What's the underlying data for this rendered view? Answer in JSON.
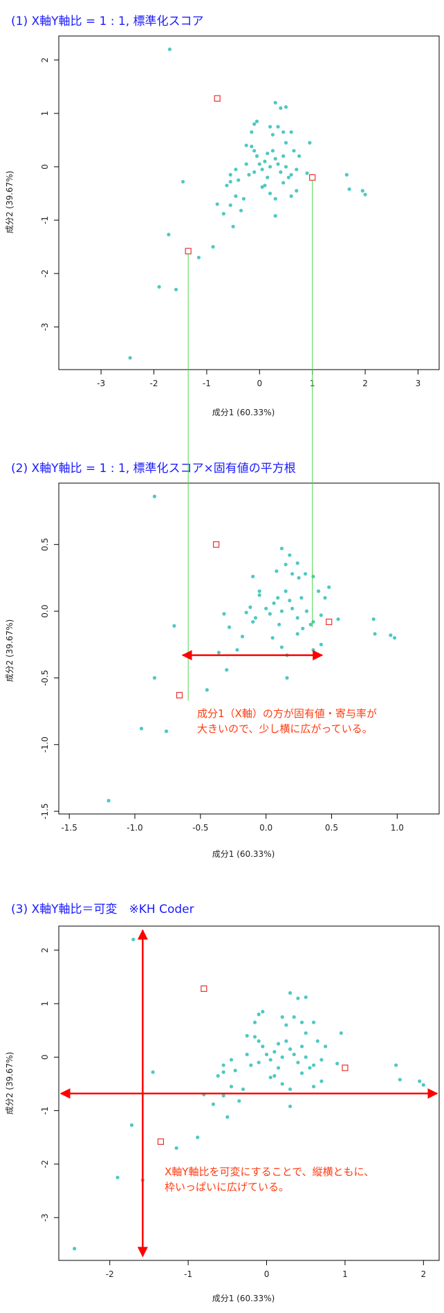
{
  "colors": {
    "point": "#4ec9c2",
    "highlight": "#e8302f",
    "guide": "#4cd24c",
    "arrow": "#ff0000",
    "heading": "#1a1aff",
    "note": "#ff3b10"
  },
  "chart_data": [
    {
      "type": "scatter",
      "heading": "(1) X軸Y軸比 = 1 : 1, 標準化スコア",
      "xlabel": "成分1 (60.33%)",
      "ylabel": "成分2 (39.67%)",
      "xlim": [
        -3.8,
        3.4
      ],
      "ylim": [
        -3.8,
        2.45
      ],
      "xticks": [
        -3,
        -2,
        -1,
        0,
        1,
        2,
        3
      ],
      "yticks": [
        -3,
        -2,
        -1,
        0,
        1,
        2
      ],
      "points": [
        [
          -1.7,
          2.2
        ],
        [
          -2.45,
          -3.58
        ],
        [
          -1.9,
          -2.25
        ],
        [
          -1.58,
          -2.3
        ],
        [
          -1.72,
          -1.27
        ],
        [
          -1.15,
          -1.7
        ],
        [
          -0.88,
          -1.5
        ],
        [
          -1.45,
          -0.28
        ],
        [
          -0.8,
          -0.7
        ],
        [
          -0.68,
          -0.88
        ],
        [
          -0.55,
          -0.72
        ],
        [
          -0.45,
          -0.55
        ],
        [
          -0.5,
          -1.12
        ],
        [
          -0.35,
          -0.82
        ],
        [
          -0.3,
          -0.6
        ],
        [
          -0.62,
          -0.35
        ],
        [
          -0.55,
          -0.15
        ],
        [
          -0.55,
          -0.28
        ],
        [
          -0.45,
          -0.05
        ],
        [
          -0.4,
          -0.25
        ],
        [
          -0.25,
          0.05
        ],
        [
          -0.2,
          -0.15
        ],
        [
          -0.15,
          0.38
        ],
        [
          -0.1,
          0.3
        ],
        [
          -0.05,
          0.2
        ],
        [
          -0.25,
          0.4
        ],
        [
          -0.15,
          0.65
        ],
        [
          -0.1,
          0.8
        ],
        [
          -0.05,
          0.85
        ],
        [
          0.0,
          0.05
        ],
        [
          0.05,
          -0.05
        ],
        [
          0.1,
          0.1
        ],
        [
          0.15,
          0.25
        ],
        [
          0.2,
          0.0
        ],
        [
          0.15,
          -0.2
        ],
        [
          0.25,
          0.3
        ],
        [
          0.3,
          0.15
        ],
        [
          0.35,
          0.05
        ],
        [
          0.4,
          -0.1
        ],
        [
          0.45,
          0.2
        ],
        [
          0.5,
          0.0
        ],
        [
          0.55,
          -0.2
        ],
        [
          0.6,
          -0.15
        ],
        [
          0.65,
          0.3
        ],
        [
          0.7,
          -0.05
        ],
        [
          0.75,
          0.2
        ],
        [
          0.25,
          0.6
        ],
        [
          0.35,
          0.75
        ],
        [
          0.45,
          0.65
        ],
        [
          0.2,
          0.75
        ],
        [
          0.3,
          1.2
        ],
        [
          0.4,
          1.1
        ],
        [
          0.5,
          1.12
        ],
        [
          0.6,
          0.65
        ],
        [
          0.1,
          -0.35
        ],
        [
          0.2,
          -0.5
        ],
        [
          0.3,
          -0.6
        ],
        [
          0.45,
          -0.3
        ],
        [
          0.6,
          -0.55
        ],
        [
          0.7,
          -0.45
        ],
        [
          0.3,
          -0.92
        ],
        [
          0.9,
          -0.12
        ],
        [
          0.95,
          0.45
        ],
        [
          1.65,
          -0.15
        ],
        [
          1.7,
          -0.42
        ],
        [
          1.95,
          -0.45
        ],
        [
          2.0,
          -0.52
        ],
        [
          0.05,
          -0.38
        ],
        [
          -0.1,
          -0.1
        ],
        [
          0.5,
          0.45
        ]
      ],
      "highlights": [
        [
          -0.8,
          1.28
        ],
        [
          -1.35,
          -1.58
        ],
        [
          1.0,
          -0.2
        ]
      ]
    },
    {
      "type": "scatter",
      "heading": "(2) X軸Y軸比 = 1 : 1, 標準化スコア×固有値の平方根",
      "xlabel": "成分1 (60.33%)",
      "ylabel": "成分2 (39.67%)",
      "xlim": [
        -1.58,
        1.32
      ],
      "ylim": [
        -1.52,
        0.96
      ],
      "xticks": [
        -1.5,
        -1.0,
        -0.5,
        0.0,
        0.5,
        1.0
      ],
      "xticklabels": [
        "-1.5",
        "-1.0",
        "-0.5",
        "0.0",
        "0.5",
        "1.0"
      ],
      "yticks": [
        -1.5,
        -1.0,
        -0.5,
        0.0,
        0.5
      ],
      "yticklabels": [
        "-1.5",
        "-1.0",
        "-0.5",
        "0.0",
        "0.5"
      ],
      "points": [
        [
          -0.85,
          0.86
        ],
        [
          -1.2,
          -1.42
        ],
        [
          -0.95,
          -0.88
        ],
        [
          -0.76,
          -0.9
        ],
        [
          -0.85,
          -0.5
        ],
        [
          -0.7,
          -0.11
        ],
        [
          -0.45,
          -0.59
        ],
        [
          -0.3,
          -0.44
        ],
        [
          -0.36,
          -0.31
        ],
        [
          -0.22,
          -0.29
        ],
        [
          -0.28,
          -0.12
        ],
        [
          -0.18,
          -0.19
        ],
        [
          -0.32,
          -0.02
        ],
        [
          -0.15,
          -0.01
        ],
        [
          -0.12,
          0.03
        ],
        [
          -0.08,
          -0.05
        ],
        [
          -0.05,
          0.15
        ],
        [
          -0.1,
          0.26
        ],
        [
          -0.05,
          0.12
        ],
        [
          0.0,
          0.02
        ],
        [
          0.03,
          -0.02
        ],
        [
          0.06,
          0.06
        ],
        [
          0.09,
          0.1
        ],
        [
          0.12,
          0.0
        ],
        [
          0.1,
          -0.1
        ],
        [
          0.15,
          0.15
        ],
        [
          0.18,
          0.08
        ],
        [
          0.2,
          0.02
        ],
        [
          0.24,
          -0.05
        ],
        [
          0.27,
          0.1
        ],
        [
          0.31,
          0.0
        ],
        [
          0.34,
          -0.1
        ],
        [
          0.36,
          -0.08
        ],
        [
          0.4,
          0.15
        ],
        [
          0.42,
          -0.03
        ],
        [
          0.45,
          0.1
        ],
        [
          0.15,
          0.35
        ],
        [
          0.18,
          0.42
        ],
        [
          0.24,
          0.36
        ],
        [
          0.12,
          0.47
        ],
        [
          0.2,
          0.28
        ],
        [
          0.25,
          0.25
        ],
        [
          0.3,
          0.28
        ],
        [
          0.36,
          0.26
        ],
        [
          0.05,
          -0.2
        ],
        [
          0.12,
          -0.27
        ],
        [
          0.16,
          -0.33
        ],
        [
          0.24,
          -0.17
        ],
        [
          0.36,
          -0.29
        ],
        [
          0.42,
          -0.25
        ],
        [
          0.16,
          -0.5
        ],
        [
          0.55,
          -0.06
        ],
        [
          0.48,
          0.18
        ],
        [
          0.82,
          -0.06
        ],
        [
          0.83,
          -0.17
        ],
        [
          0.95,
          -0.18
        ],
        [
          0.98,
          -0.2
        ],
        [
          -0.1,
          -0.08
        ],
        [
          0.08,
          0.3
        ],
        [
          0.28,
          -0.13
        ]
      ],
      "highlights": [
        [
          -0.38,
          0.5
        ],
        [
          -0.66,
          -0.63
        ],
        [
          0.48,
          -0.08
        ]
      ],
      "note": [
        "成分1（X軸）の方が固有値・寄与率が",
        "大きいので、少し横に広がっている。"
      ]
    },
    {
      "type": "scatter",
      "heading": "(3) X軸Y軸比＝可変　※KH Coder",
      "xlabel": "成分1 (60.33%)",
      "ylabel": "成分2 (39.67%)",
      "xlim": [
        -2.65,
        2.2
      ],
      "ylim": [
        -3.8,
        2.45
      ],
      "xticks": [
        -2,
        -1,
        0,
        1,
        2
      ],
      "yticks": [
        -3,
        -2,
        -1,
        0,
        1,
        2
      ],
      "points": [
        [
          -1.7,
          2.2
        ],
        [
          -2.45,
          -3.58
        ],
        [
          -1.9,
          -2.25
        ],
        [
          -1.58,
          -2.3
        ],
        [
          -1.72,
          -1.27
        ],
        [
          -1.15,
          -1.7
        ],
        [
          -0.88,
          -1.5
        ],
        [
          -1.45,
          -0.28
        ],
        [
          -0.8,
          -0.7
        ],
        [
          -0.68,
          -0.88
        ],
        [
          -0.55,
          -0.72
        ],
        [
          -0.45,
          -0.55
        ],
        [
          -0.5,
          -1.12
        ],
        [
          -0.35,
          -0.82
        ],
        [
          -0.3,
          -0.6
        ],
        [
          -0.62,
          -0.35
        ],
        [
          -0.55,
          -0.15
        ],
        [
          -0.55,
          -0.28
        ],
        [
          -0.45,
          -0.05
        ],
        [
          -0.4,
          -0.25
        ],
        [
          -0.25,
          0.05
        ],
        [
          -0.2,
          -0.15
        ],
        [
          -0.15,
          0.38
        ],
        [
          -0.1,
          0.3
        ],
        [
          -0.05,
          0.2
        ],
        [
          -0.25,
          0.4
        ],
        [
          -0.15,
          0.65
        ],
        [
          -0.1,
          0.8
        ],
        [
          -0.05,
          0.85
        ],
        [
          0.0,
          0.05
        ],
        [
          0.05,
          -0.05
        ],
        [
          0.1,
          0.1
        ],
        [
          0.15,
          0.25
        ],
        [
          0.2,
          0.0
        ],
        [
          0.15,
          -0.2
        ],
        [
          0.25,
          0.3
        ],
        [
          0.3,
          0.15
        ],
        [
          0.35,
          0.05
        ],
        [
          0.4,
          -0.1
        ],
        [
          0.45,
          0.2
        ],
        [
          0.5,
          0.0
        ],
        [
          0.55,
          -0.2
        ],
        [
          0.6,
          -0.15
        ],
        [
          0.65,
          0.3
        ],
        [
          0.7,
          -0.05
        ],
        [
          0.75,
          0.2
        ],
        [
          0.25,
          0.6
        ],
        [
          0.35,
          0.75
        ],
        [
          0.45,
          0.65
        ],
        [
          0.2,
          0.75
        ],
        [
          0.3,
          1.2
        ],
        [
          0.4,
          1.1
        ],
        [
          0.5,
          1.12
        ],
        [
          0.6,
          0.65
        ],
        [
          0.1,
          -0.35
        ],
        [
          0.2,
          -0.5
        ],
        [
          0.3,
          -0.6
        ],
        [
          0.45,
          -0.3
        ],
        [
          0.6,
          -0.55
        ],
        [
          0.7,
          -0.45
        ],
        [
          0.3,
          -0.92
        ],
        [
          0.9,
          -0.12
        ],
        [
          0.95,
          0.45
        ],
        [
          1.65,
          -0.15
        ],
        [
          1.7,
          -0.42
        ],
        [
          1.95,
          -0.45
        ],
        [
          2.0,
          -0.52
        ],
        [
          0.05,
          -0.38
        ],
        [
          -0.1,
          -0.1
        ],
        [
          0.5,
          0.45
        ]
      ],
      "highlights": [
        [
          -0.8,
          1.28
        ],
        [
          -1.35,
          -1.58
        ],
        [
          1.0,
          -0.2
        ]
      ],
      "note": [
        "X軸Y軸比を可変にすることで、縦横ともに、",
        "枠いっぱいに広げている。"
      ]
    }
  ]
}
